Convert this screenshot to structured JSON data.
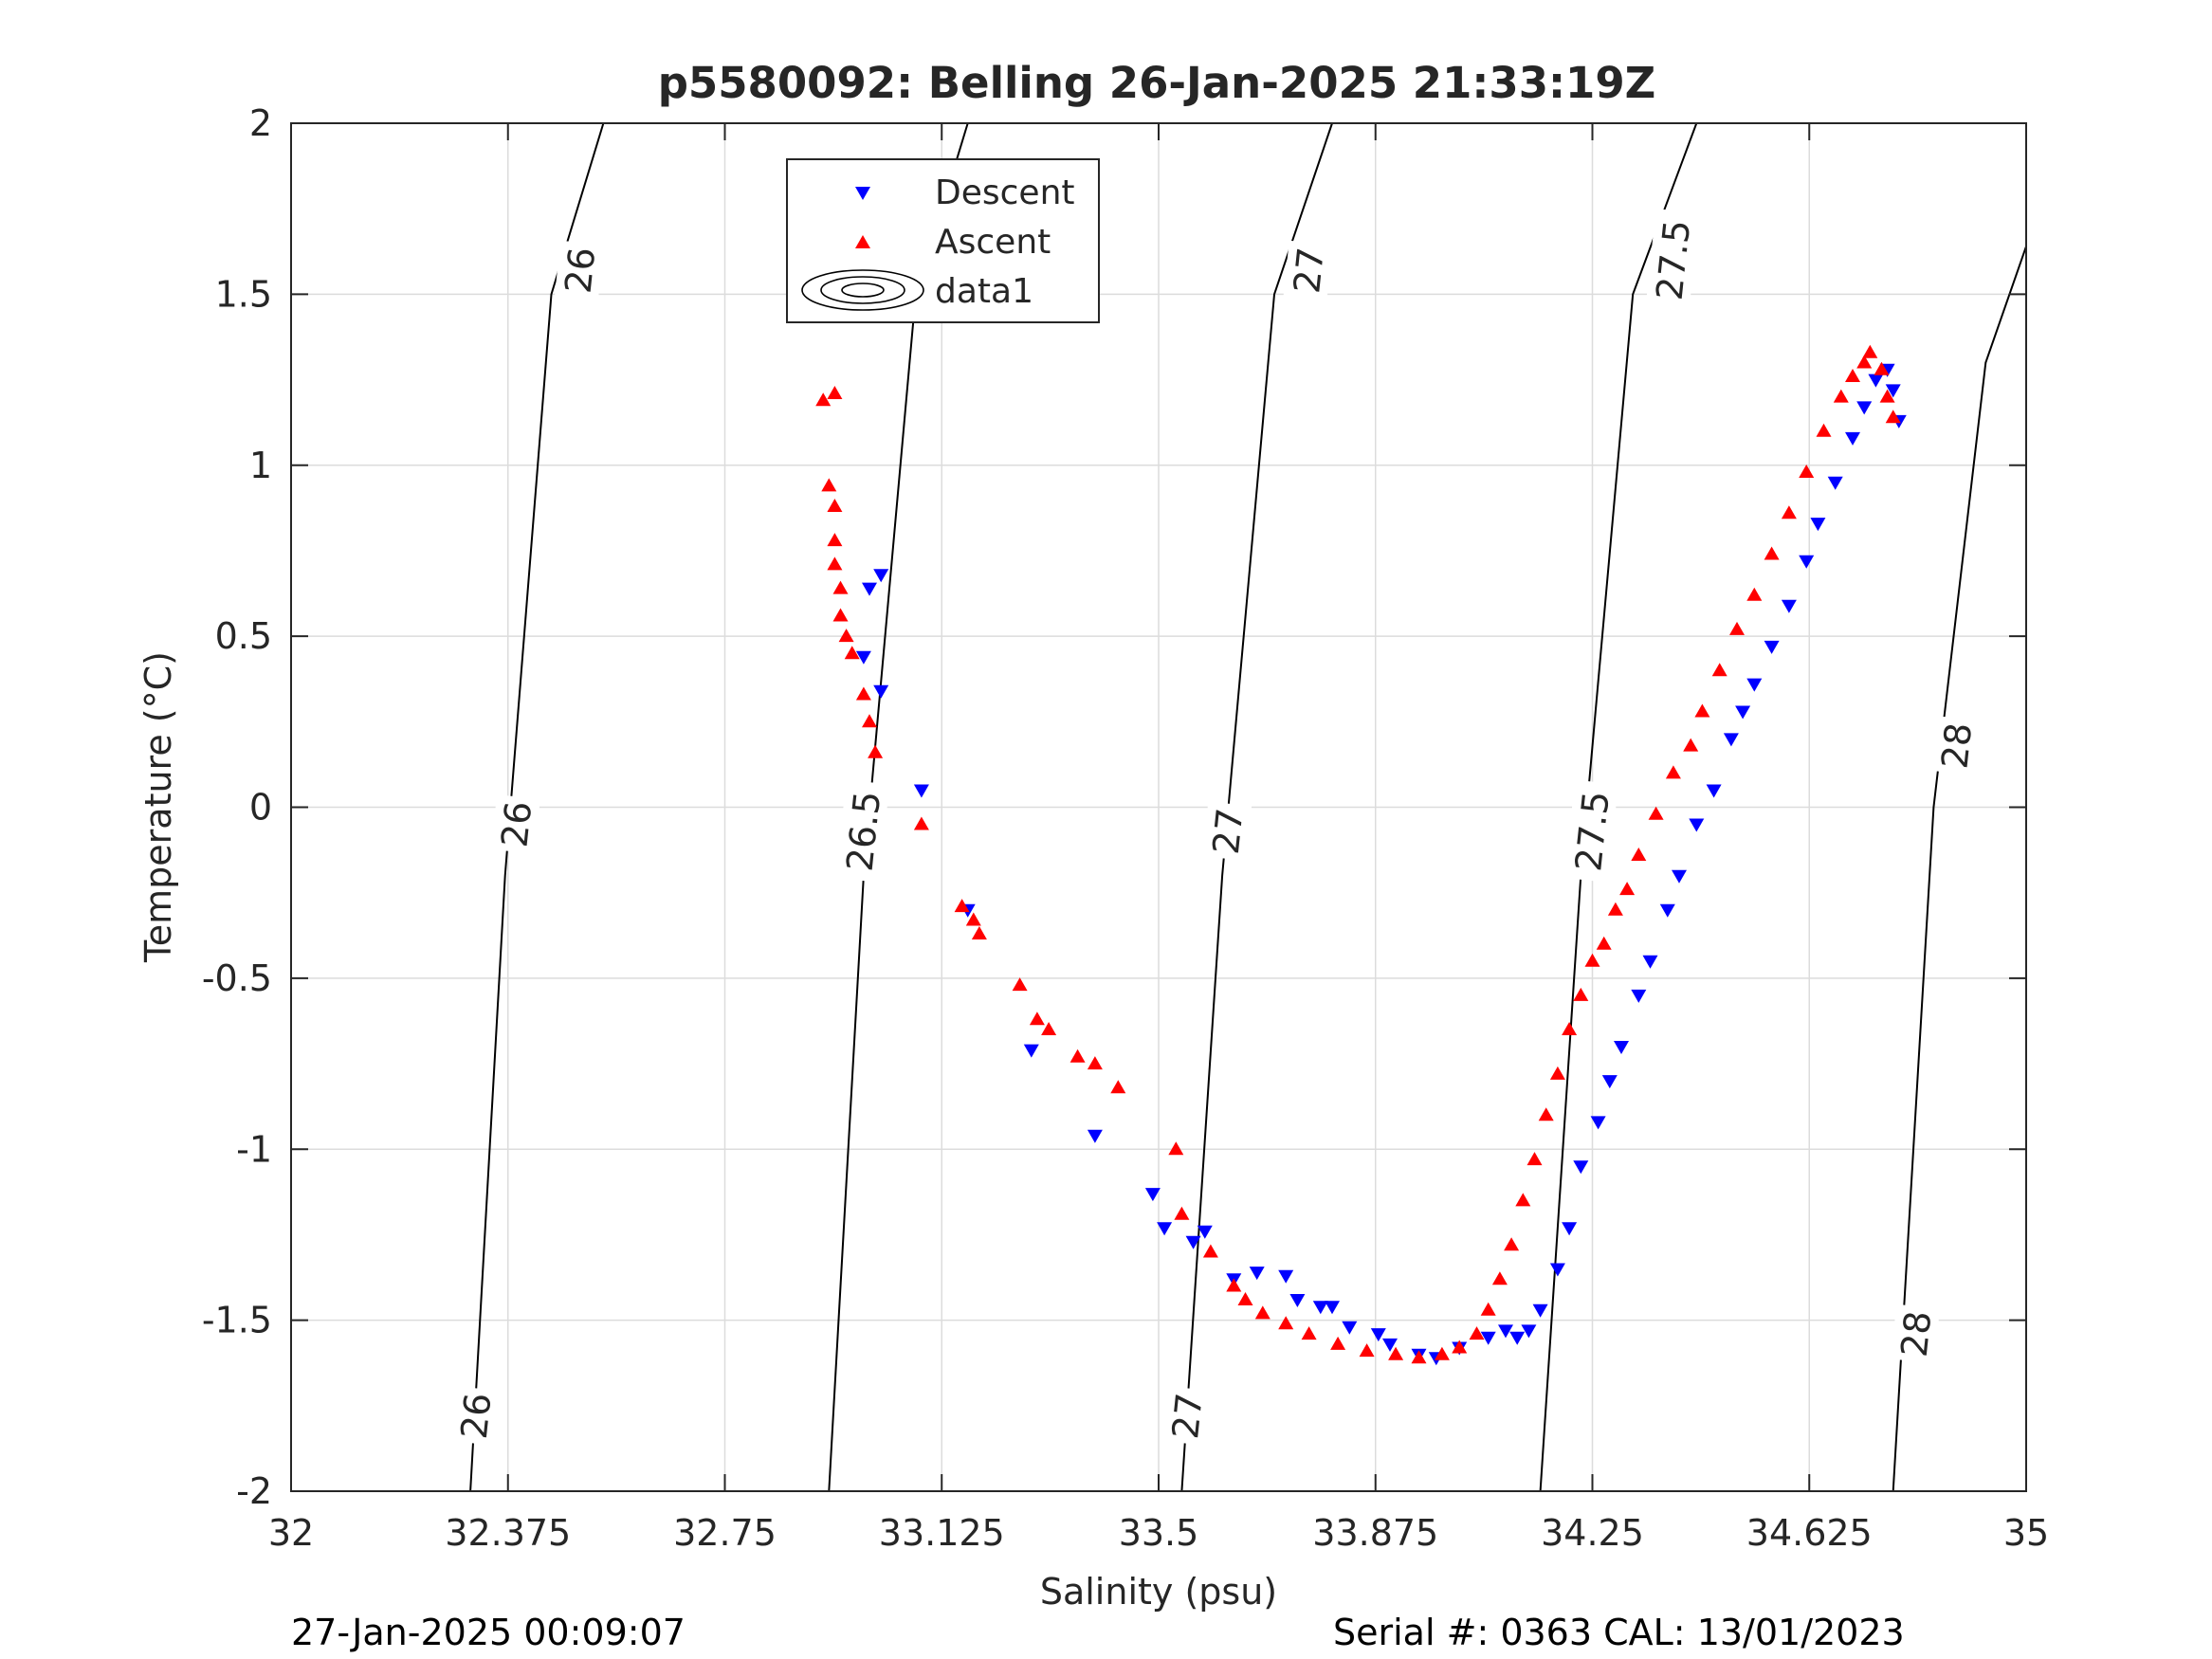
{
  "chart_data": {
    "type": "scatter",
    "title": "p5580092: Belling 26-Jan-2025 21:33:19Z",
    "xlabel": "Salinity (psu)",
    "ylabel": "Temperature (°C)",
    "xlim": [
      32,
      35
    ],
    "ylim": [
      -2,
      2
    ],
    "x_ticks": [
      "32",
      "32.375",
      "32.75",
      "33.125",
      "33.5",
      "33.875",
      "34.25",
      "34.625",
      "35"
    ],
    "y_ticks": [
      "2",
      "1.5",
      "1",
      "0.5",
      "0",
      "-0.5",
      "-1",
      "-1.5",
      "-2"
    ],
    "grid": true,
    "legend_position": "top-center",
    "legend": [
      "Descent",
      "Ascent",
      "data1"
    ],
    "colors": {
      "descent": "#0000ff",
      "ascent": "#ff0000",
      "contour": "#000000"
    },
    "density_contours": [
      {
        "label": "26",
        "points": [
          [
            32.31,
            -2.0
          ],
          [
            32.37,
            -0.2
          ],
          [
            32.45,
            1.5
          ],
          [
            32.54,
            2.0
          ]
        ]
      },
      {
        "label": "26.5",
        "points": [
          [
            32.93,
            -2.0
          ],
          [
            32.99,
            -0.2
          ],
          [
            33.08,
            1.5
          ],
          [
            33.17,
            2.0
          ]
        ]
      },
      {
        "label": "27",
        "points": [
          [
            33.54,
            -2.0
          ],
          [
            33.61,
            -0.2
          ],
          [
            33.7,
            1.5
          ],
          [
            33.8,
            2.0
          ]
        ]
      },
      {
        "label": "27.5",
        "points": [
          [
            34.16,
            -2.0
          ],
          [
            34.23,
            -0.2
          ],
          [
            34.32,
            1.5
          ],
          [
            34.43,
            2.0
          ]
        ]
      },
      {
        "label": "28",
        "points": [
          [
            34.77,
            -2.0
          ],
          [
            34.84,
            0.0
          ],
          [
            34.93,
            1.3
          ],
          [
            35.0,
            1.64
          ]
        ]
      }
    ],
    "contour_labels": [
      {
        "text": "26",
        "x": 32.32,
        "y": -1.78
      },
      {
        "text": "26",
        "x": 32.39,
        "y": -0.05
      },
      {
        "text": "26",
        "x": 32.5,
        "y": 1.57
      },
      {
        "text": "26.5",
        "x": 32.99,
        "y": -0.07
      },
      {
        "text": "26.5",
        "x": 33.11,
        "y": 1.6
      },
      {
        "text": "27",
        "x": 33.55,
        "y": -1.78
      },
      {
        "text": "27",
        "x": 33.62,
        "y": -0.07
      },
      {
        "text": "27",
        "x": 33.76,
        "y": 1.57
      },
      {
        "text": "27.5",
        "x": 34.25,
        "y": -0.07
      },
      {
        "text": "27.5",
        "x": 34.39,
        "y": 1.6
      },
      {
        "text": "28",
        "x": 34.81,
        "y": -1.54
      },
      {
        "text": "28",
        "x": 34.88,
        "y": 0.18
      }
    ],
    "series": [
      {
        "name": "Descent",
        "marker": "triangle-down",
        "points": [
          [
            33.0,
            0.64
          ],
          [
            33.02,
            0.68
          ],
          [
            32.99,
            0.44
          ],
          [
            33.02,
            0.34
          ],
          [
            33.09,
            0.05
          ],
          [
            33.17,
            -0.3
          ],
          [
            33.28,
            -0.71
          ],
          [
            33.39,
            -0.96
          ],
          [
            33.49,
            -1.13
          ],
          [
            33.51,
            -1.23
          ],
          [
            33.56,
            -1.27
          ],
          [
            33.58,
            -1.24
          ],
          [
            33.63,
            -1.38
          ],
          [
            33.67,
            -1.36
          ],
          [
            33.72,
            -1.37
          ],
          [
            33.74,
            -1.44
          ],
          [
            33.78,
            -1.46
          ],
          [
            33.8,
            -1.46
          ],
          [
            33.83,
            -1.52
          ],
          [
            33.88,
            -1.54
          ],
          [
            33.9,
            -1.57
          ],
          [
            33.95,
            -1.6
          ],
          [
            33.98,
            -1.61
          ],
          [
            34.02,
            -1.58
          ],
          [
            34.07,
            -1.55
          ],
          [
            34.1,
            -1.53
          ],
          [
            34.12,
            -1.55
          ],
          [
            34.14,
            -1.53
          ],
          [
            34.16,
            -1.47
          ],
          [
            34.19,
            -1.35
          ],
          [
            34.21,
            -1.23
          ],
          [
            34.23,
            -1.05
          ],
          [
            34.26,
            -0.92
          ],
          [
            34.28,
            -0.8
          ],
          [
            34.3,
            -0.7
          ],
          [
            34.33,
            -0.55
          ],
          [
            34.35,
            -0.45
          ],
          [
            34.38,
            -0.3
          ],
          [
            34.4,
            -0.2
          ],
          [
            34.43,
            -0.05
          ],
          [
            34.46,
            0.05
          ],
          [
            34.49,
            0.2
          ],
          [
            34.51,
            0.28
          ],
          [
            34.53,
            0.36
          ],
          [
            34.56,
            0.47
          ],
          [
            34.59,
            0.59
          ],
          [
            34.62,
            0.72
          ],
          [
            34.64,
            0.83
          ],
          [
            34.67,
            0.95
          ],
          [
            34.7,
            1.08
          ],
          [
            34.72,
            1.17
          ],
          [
            34.74,
            1.25
          ],
          [
            34.76,
            1.28
          ],
          [
            34.77,
            1.22
          ],
          [
            34.78,
            1.13
          ]
        ]
      },
      {
        "name": "Ascent",
        "marker": "triangle-up",
        "points": [
          [
            32.92,
            1.19
          ],
          [
            32.94,
            1.21
          ],
          [
            32.93,
            0.94
          ],
          [
            32.94,
            0.88
          ],
          [
            32.94,
            0.78
          ],
          [
            32.94,
            0.71
          ],
          [
            32.95,
            0.64
          ],
          [
            32.95,
            0.56
          ],
          [
            32.96,
            0.5
          ],
          [
            32.97,
            0.45
          ],
          [
            32.99,
            0.33
          ],
          [
            33.0,
            0.25
          ],
          [
            33.01,
            0.16
          ],
          [
            33.09,
            -0.05
          ],
          [
            33.16,
            -0.29
          ],
          [
            33.18,
            -0.33
          ],
          [
            33.19,
            -0.37
          ],
          [
            33.26,
            -0.52
          ],
          [
            33.29,
            -0.62
          ],
          [
            33.31,
            -0.65
          ],
          [
            33.36,
            -0.73
          ],
          [
            33.39,
            -0.75
          ],
          [
            33.43,
            -0.82
          ],
          [
            33.53,
            -1.0
          ],
          [
            33.54,
            -1.19
          ],
          [
            33.59,
            -1.3
          ],
          [
            33.63,
            -1.4
          ],
          [
            33.65,
            -1.44
          ],
          [
            33.68,
            -1.48
          ],
          [
            33.72,
            -1.51
          ],
          [
            33.76,
            -1.54
          ],
          [
            33.81,
            -1.57
          ],
          [
            33.86,
            -1.59
          ],
          [
            33.91,
            -1.6
          ],
          [
            33.95,
            -1.61
          ],
          [
            33.99,
            -1.6
          ],
          [
            34.02,
            -1.58
          ],
          [
            34.05,
            -1.54
          ],
          [
            34.07,
            -1.47
          ],
          [
            34.09,
            -1.38
          ],
          [
            34.11,
            -1.28
          ],
          [
            34.13,
            -1.15
          ],
          [
            34.15,
            -1.03
          ],
          [
            34.17,
            -0.9
          ],
          [
            34.19,
            -0.78
          ],
          [
            34.21,
            -0.65
          ],
          [
            34.23,
            -0.55
          ],
          [
            34.25,
            -0.45
          ],
          [
            34.27,
            -0.4
          ],
          [
            34.29,
            -0.3
          ],
          [
            34.31,
            -0.24
          ],
          [
            34.33,
            -0.14
          ],
          [
            34.36,
            -0.02
          ],
          [
            34.39,
            0.1
          ],
          [
            34.42,
            0.18
          ],
          [
            34.44,
            0.28
          ],
          [
            34.47,
            0.4
          ],
          [
            34.5,
            0.52
          ],
          [
            34.53,
            0.62
          ],
          [
            34.56,
            0.74
          ],
          [
            34.59,
            0.86
          ],
          [
            34.62,
            0.98
          ],
          [
            34.65,
            1.1
          ],
          [
            34.68,
            1.2
          ],
          [
            34.7,
            1.26
          ],
          [
            34.72,
            1.3
          ],
          [
            34.73,
            1.33
          ],
          [
            34.75,
            1.28
          ],
          [
            34.76,
            1.2
          ],
          [
            34.77,
            1.14
          ]
        ]
      }
    ]
  },
  "footer": {
    "timestamp": "27-Jan-2025 00:09:07",
    "serial": "Serial #: 0363  CAL: 13/01/2023"
  }
}
